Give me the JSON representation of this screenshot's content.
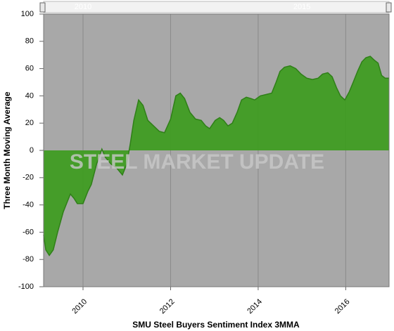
{
  "chart_data": {
    "type": "area",
    "x_title": "SMU Steel Buyers Sentiment Index 3MMA",
    "y_title": "Three Month Moving Average",
    "watermark": "STEEL MARKET UPDATE",
    "navigator_ticks": [
      2010,
      2015
    ],
    "x": [
      2009.1,
      2009.15,
      2009.23,
      2009.32,
      2009.42,
      2009.55,
      2009.71,
      2009.79,
      2009.87,
      2010.0,
      2010.11,
      2010.19,
      2010.31,
      2010.43,
      2010.51,
      2010.64,
      2010.77,
      2010.9,
      2011.0,
      2011.08,
      2011.16,
      2011.27,
      2011.37,
      2011.48,
      2011.61,
      2011.74,
      2011.86,
      2012.0,
      2012.12,
      2012.22,
      2012.32,
      2012.44,
      2012.57,
      2012.7,
      2012.8,
      2012.89,
      2013.02,
      2013.12,
      2013.21,
      2013.31,
      2013.41,
      2013.52,
      2013.62,
      2013.73,
      2013.84,
      2013.92,
      2014.05,
      2014.18,
      2014.31,
      2014.41,
      2014.5,
      2014.6,
      2014.73,
      2014.86,
      2014.98,
      2015.11,
      2015.24,
      2015.37,
      2015.47,
      2015.59,
      2015.69,
      2015.79,
      2015.88,
      2015.98,
      2016.08,
      2016.17,
      2016.27,
      2016.37,
      2016.46,
      2016.56,
      2016.66,
      2016.74,
      2016.82,
      2016.9,
      2016.99
    ],
    "series": [
      {
        "name": "SMU Steel Buyers Sentiment Index 3MMA",
        "color": "#3f9c22",
        "line_color": "#2f7f18",
        "values": [
          -62,
          -73,
          -77,
          -73,
          -60,
          -45,
          -32,
          -35,
          -39,
          -39,
          -30,
          -25,
          -10,
          1,
          -5,
          -10,
          -13,
          -18,
          -10,
          5,
          22,
          37,
          33,
          22,
          18,
          14,
          13,
          23,
          40,
          42,
          38,
          28,
          23,
          22,
          18,
          16,
          22,
          24,
          22,
          18,
          20,
          28,
          37,
          39,
          38,
          37,
          40,
          41,
          42,
          50,
          58,
          61,
          62,
          60,
          56,
          53,
          52,
          53,
          56,
          57,
          54,
          46,
          40,
          37,
          43,
          50,
          58,
          65,
          68,
          69,
          66,
          64,
          55,
          53,
          53
        ]
      }
    ],
    "xlim": [
      2009.1,
      2016.99
    ],
    "xticks": [
      2010,
      2012,
      2014,
      2016
    ],
    "ylim": [
      -100,
      100
    ],
    "yticks": [
      -100,
      -80,
      -60,
      -40,
      -20,
      0,
      20,
      40,
      60,
      80,
      100
    ],
    "plot_background": "#a8a8a8",
    "grid": "x"
  }
}
